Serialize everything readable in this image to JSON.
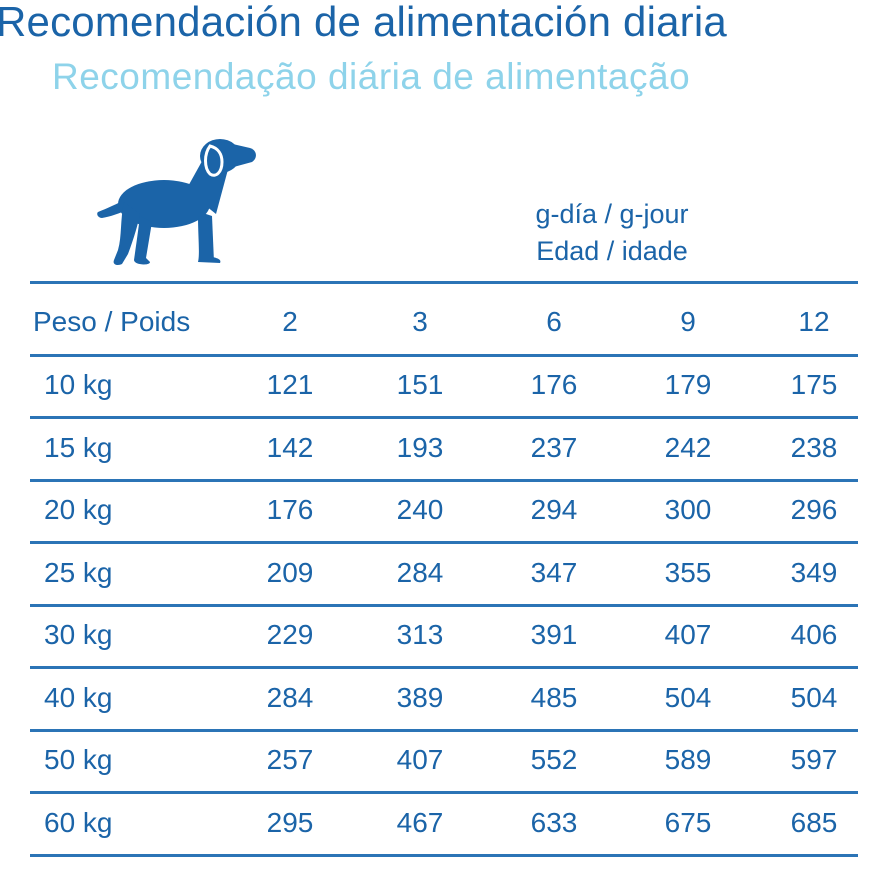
{
  "title_es": "Recomendación de alimentación diaria",
  "title_pt": "Recomendação diária de alimentação",
  "dog_icon": "dog-silhouette-icon",
  "colors": {
    "primary": "#1b64a8",
    "secondary": "#8ed3ea",
    "rule": "#2b74b6"
  },
  "unit_label": "g-día / g-jour",
  "age_label": "Edad / idade",
  "table": {
    "header": {
      "weight": "Peso / Poids",
      "ages": [
        "2",
        "3",
        "6",
        "9",
        "12"
      ]
    },
    "rows": [
      {
        "weight": "10 kg",
        "values": [
          "121",
          "151",
          "176",
          "179",
          "175"
        ]
      },
      {
        "weight": "15 kg",
        "values": [
          "142",
          "193",
          "237",
          "242",
          "238"
        ]
      },
      {
        "weight": "20 kg",
        "values": [
          "176",
          "240",
          "294",
          "300",
          "296"
        ]
      },
      {
        "weight": "25 kg",
        "values": [
          "209",
          "284",
          "347",
          "355",
          "349"
        ]
      },
      {
        "weight": "30 kg",
        "values": [
          "229",
          "313",
          "391",
          "407",
          "406"
        ]
      },
      {
        "weight": "40 kg",
        "values": [
          "284",
          "389",
          "485",
          "504",
          "504"
        ]
      },
      {
        "weight": "50 kg",
        "values": [
          "257",
          "407",
          "552",
          "589",
          "597"
        ]
      },
      {
        "weight": "60 kg",
        "values": [
          "295",
          "467",
          "633",
          "675",
          "685"
        ]
      }
    ]
  }
}
